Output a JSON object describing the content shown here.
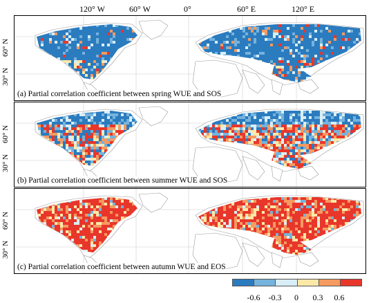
{
  "longitude_labels": [
    "120° W",
    "60° W",
    "0°",
    "60° E",
    "120° E"
  ],
  "latitude_labels": [
    "60° N",
    "30° N"
  ],
  "panels": [
    {
      "caption": "(a) Partial correlation coefficient between spring WUE and SOS",
      "pattern": "spring"
    },
    {
      "caption": "(b) Partial correlation coefficient between summer WUE and SOS",
      "pattern": "summer"
    },
    {
      "caption": "(c) Partial correlation coefficient between autumn WUE and EOS",
      "pattern": "autumn"
    }
  ],
  "legend": {
    "colors": [
      "#2b7bbf",
      "#75b3dc",
      "#d8eef6",
      "#fbe8a6",
      "#f59a60",
      "#e8362b"
    ],
    "tick_labels": [
      "-0.6",
      "-0.3",
      "0",
      "0.3",
      "0.6"
    ]
  }
}
